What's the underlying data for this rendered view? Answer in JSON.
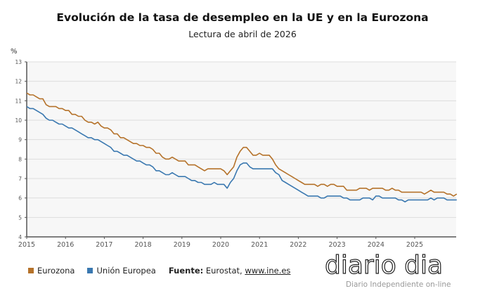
{
  "chart_data": {
    "type": "line",
    "title": "Evolución de la tasa de desempleo en la UE y en la Eurozona",
    "subtitle": "Lectura de abril de 2026",
    "ylabel": "%",
    "ylim": [
      4,
      13
    ],
    "yticks": [
      "4",
      "5",
      "6",
      "7",
      "8",
      "9",
      "10",
      "11",
      "12",
      "13"
    ],
    "xticks": [
      "2015",
      "2016",
      "2017",
      "2018",
      "2019",
      "2020",
      "2021",
      "2022",
      "2023",
      "2024",
      "2025"
    ],
    "xlim": [
      "2015-01",
      "2026-02"
    ],
    "frequency": "monthly",
    "grid": true,
    "legend_position": "bottom",
    "series": [
      {
        "name": "Eurozona",
        "color": "#b5722a",
        "values_by_year": {
          "2015": [
            11.4,
            11.3,
            11.3,
            11.2,
            11.1,
            11.1,
            10.8,
            10.7,
            10.7,
            10.7,
            10.6,
            10.6
          ],
          "2016": [
            10.5,
            10.5,
            10.3,
            10.3,
            10.2,
            10.2,
            10.0,
            9.9,
            9.9,
            9.8,
            9.9,
            9.7
          ],
          "2017": [
            9.6,
            9.6,
            9.5,
            9.3,
            9.3,
            9.1,
            9.1,
            9.0,
            8.9,
            8.8,
            8.8,
            8.7
          ],
          "2018": [
            8.7,
            8.6,
            8.6,
            8.5,
            8.3,
            8.3,
            8.1,
            8.0,
            8.0,
            8.1,
            8.0,
            7.9
          ],
          "2019": [
            7.9,
            7.9,
            7.7,
            7.7,
            7.7,
            7.6,
            7.5,
            7.4,
            7.5,
            7.5,
            7.5,
            7.5
          ],
          "2020": [
            7.5,
            7.4,
            7.2,
            7.4,
            7.6,
            8.1,
            8.4,
            8.6,
            8.6,
            8.4,
            8.2,
            8.2
          ],
          "2021": [
            8.3,
            8.2,
            8.2,
            8.2,
            8.0,
            7.7,
            7.5,
            7.4,
            7.3,
            7.2,
            7.1,
            7.0
          ],
          "2022": [
            6.9,
            6.8,
            6.7,
            6.7,
            6.7,
            6.7,
            6.6,
            6.7,
            6.7,
            6.6,
            6.7,
            6.7
          ],
          "2023": [
            6.6,
            6.6,
            6.6,
            6.4,
            6.4,
            6.4,
            6.4,
            6.5,
            6.5,
            6.5,
            6.4,
            6.5
          ],
          "2024": [
            6.5,
            6.5,
            6.5,
            6.4,
            6.4,
            6.5,
            6.4,
            6.4,
            6.3,
            6.3,
            6.3,
            6.3
          ],
          "2025": [
            6.3,
            6.3,
            6.3,
            6.2,
            6.3,
            6.4,
            6.3,
            6.3,
            6.3,
            6.3,
            6.2,
            6.2
          ],
          "2026": [
            6.1,
            6.2
          ]
        }
      },
      {
        "name": "Unión Europea",
        "color": "#3a78b0",
        "values_by_year": {
          "2015": [
            10.7,
            10.6,
            10.6,
            10.5,
            10.4,
            10.3,
            10.1,
            10.0,
            10.0,
            9.9,
            9.8,
            9.8
          ],
          "2016": [
            9.7,
            9.6,
            9.6,
            9.5,
            9.4,
            9.3,
            9.2,
            9.1,
            9.1,
            9.0,
            9.0,
            8.9
          ],
          "2017": [
            8.8,
            8.7,
            8.6,
            8.4,
            8.4,
            8.3,
            8.2,
            8.2,
            8.1,
            8.0,
            7.9,
            7.9
          ],
          "2018": [
            7.8,
            7.7,
            7.7,
            7.6,
            7.4,
            7.4,
            7.3,
            7.2,
            7.2,
            7.3,
            7.2,
            7.1
          ],
          "2019": [
            7.1,
            7.1,
            7.0,
            6.9,
            6.9,
            6.8,
            6.8,
            6.7,
            6.7,
            6.7,
            6.8,
            6.7
          ],
          "2020": [
            6.7,
            6.7,
            6.5,
            6.8,
            7.0,
            7.4,
            7.7,
            7.8,
            7.8,
            7.6,
            7.5,
            7.5
          ],
          "2021": [
            7.5,
            7.5,
            7.5,
            7.5,
            7.5,
            7.3,
            7.2,
            6.9,
            6.8,
            6.7,
            6.6,
            6.5
          ],
          "2022": [
            6.4,
            6.3,
            6.2,
            6.1,
            6.1,
            6.1,
            6.1,
            6.0,
            6.0,
            6.1,
            6.1,
            6.1
          ],
          "2023": [
            6.1,
            6.1,
            6.0,
            6.0,
            5.9,
            5.9,
            5.9,
            5.9,
            6.0,
            6.0,
            6.0,
            5.9
          ],
          "2024": [
            6.1,
            6.1,
            6.0,
            6.0,
            6.0,
            6.0,
            6.0,
            5.9,
            5.9,
            5.8,
            5.9,
            5.9
          ],
          "2025": [
            5.9,
            5.9,
            5.9,
            5.9,
            5.9,
            6.0,
            5.9,
            6.0,
            6.0,
            6.0,
            5.9,
            5.9
          ],
          "2026": [
            5.9,
            5.9
          ]
        }
      }
    ]
  },
  "legend": {
    "eurozona": "Eurozona",
    "ue": "Unión Europea"
  },
  "source": {
    "label": "Fuente:",
    "text": "Eurostat,",
    "link": "www.ine.es"
  },
  "watermark": {
    "logo": "diario dia",
    "tagline": "Diario Independiente on-line"
  }
}
